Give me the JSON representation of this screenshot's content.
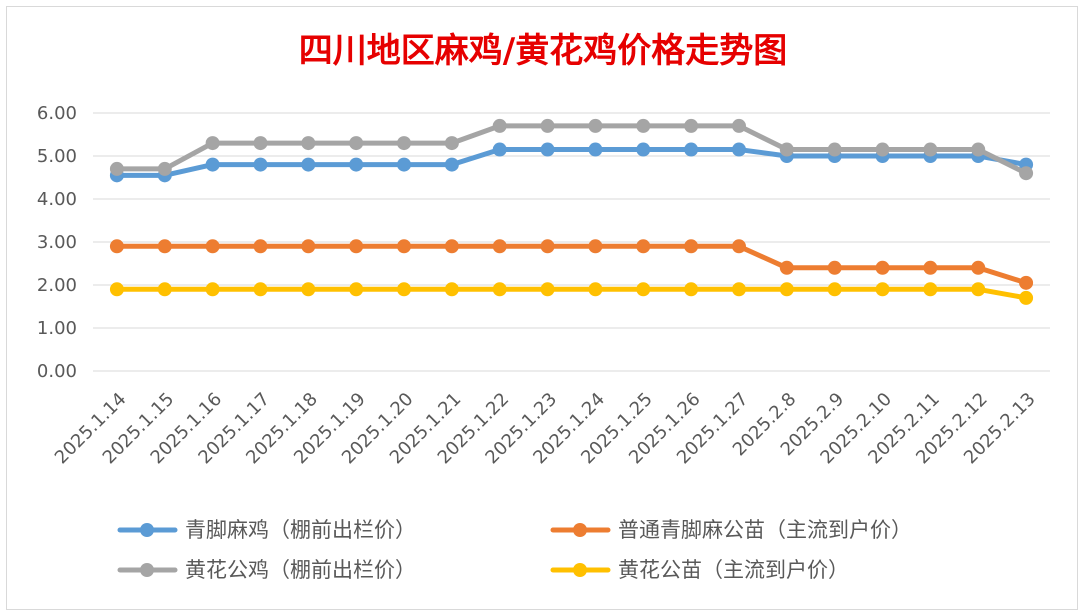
{
  "chart_data": {
    "type": "line",
    "title": "四川地区麻鸡/黄花鸡价格走势图",
    "categories": [
      "2025.1.14",
      "2025.1.15",
      "2025.1.16",
      "2025.1.17",
      "2025.1.18",
      "2025.1.19",
      "2025.1.20",
      "2025.1.21",
      "2025.1.22",
      "2025.1.23",
      "2025.1.24",
      "2025.1.25",
      "2025.1.26",
      "2025.1.27",
      "2025.2.8",
      "2025.2.9",
      "2025.2.10",
      "2025.2.11",
      "2025.2.12",
      "2025.2.13"
    ],
    "y_ticks": [
      "6.00",
      "5.00",
      "4.00",
      "3.00",
      "2.00",
      "1.00",
      "0.00"
    ],
    "ylim": [
      0,
      6
    ],
    "grid": true,
    "legend_position": "bottom",
    "series": [
      {
        "name": "青脚麻鸡（棚前出栏价）",
        "color": "#5b9bd5",
        "values": [
          4.55,
          4.55,
          4.8,
          4.8,
          4.8,
          4.8,
          4.8,
          4.8,
          5.15,
          5.15,
          5.15,
          5.15,
          5.15,
          5.15,
          5.0,
          5.0,
          5.0,
          5.0,
          5.0,
          4.8
        ]
      },
      {
        "name": "普通青脚麻公苗（主流到户价）",
        "color": "#ed7d31",
        "values": [
          2.9,
          2.9,
          2.9,
          2.9,
          2.9,
          2.9,
          2.9,
          2.9,
          2.9,
          2.9,
          2.9,
          2.9,
          2.9,
          2.9,
          2.4,
          2.4,
          2.4,
          2.4,
          2.4,
          2.05
        ]
      },
      {
        "name": "黄花公鸡（棚前出栏价）",
        "color": "#a5a5a5",
        "values": [
          4.7,
          4.7,
          5.3,
          5.3,
          5.3,
          5.3,
          5.3,
          5.3,
          5.7,
          5.7,
          5.7,
          5.7,
          5.7,
          5.7,
          5.15,
          5.15,
          5.15,
          5.15,
          5.15,
          4.6
        ]
      },
      {
        "name": "黄花公苗（主流到户价）",
        "color": "#ffc000",
        "values": [
          1.9,
          1.9,
          1.9,
          1.9,
          1.9,
          1.9,
          1.9,
          1.9,
          1.9,
          1.9,
          1.9,
          1.9,
          1.9,
          1.9,
          1.9,
          1.9,
          1.9,
          1.9,
          1.9,
          1.7
        ]
      }
    ]
  }
}
